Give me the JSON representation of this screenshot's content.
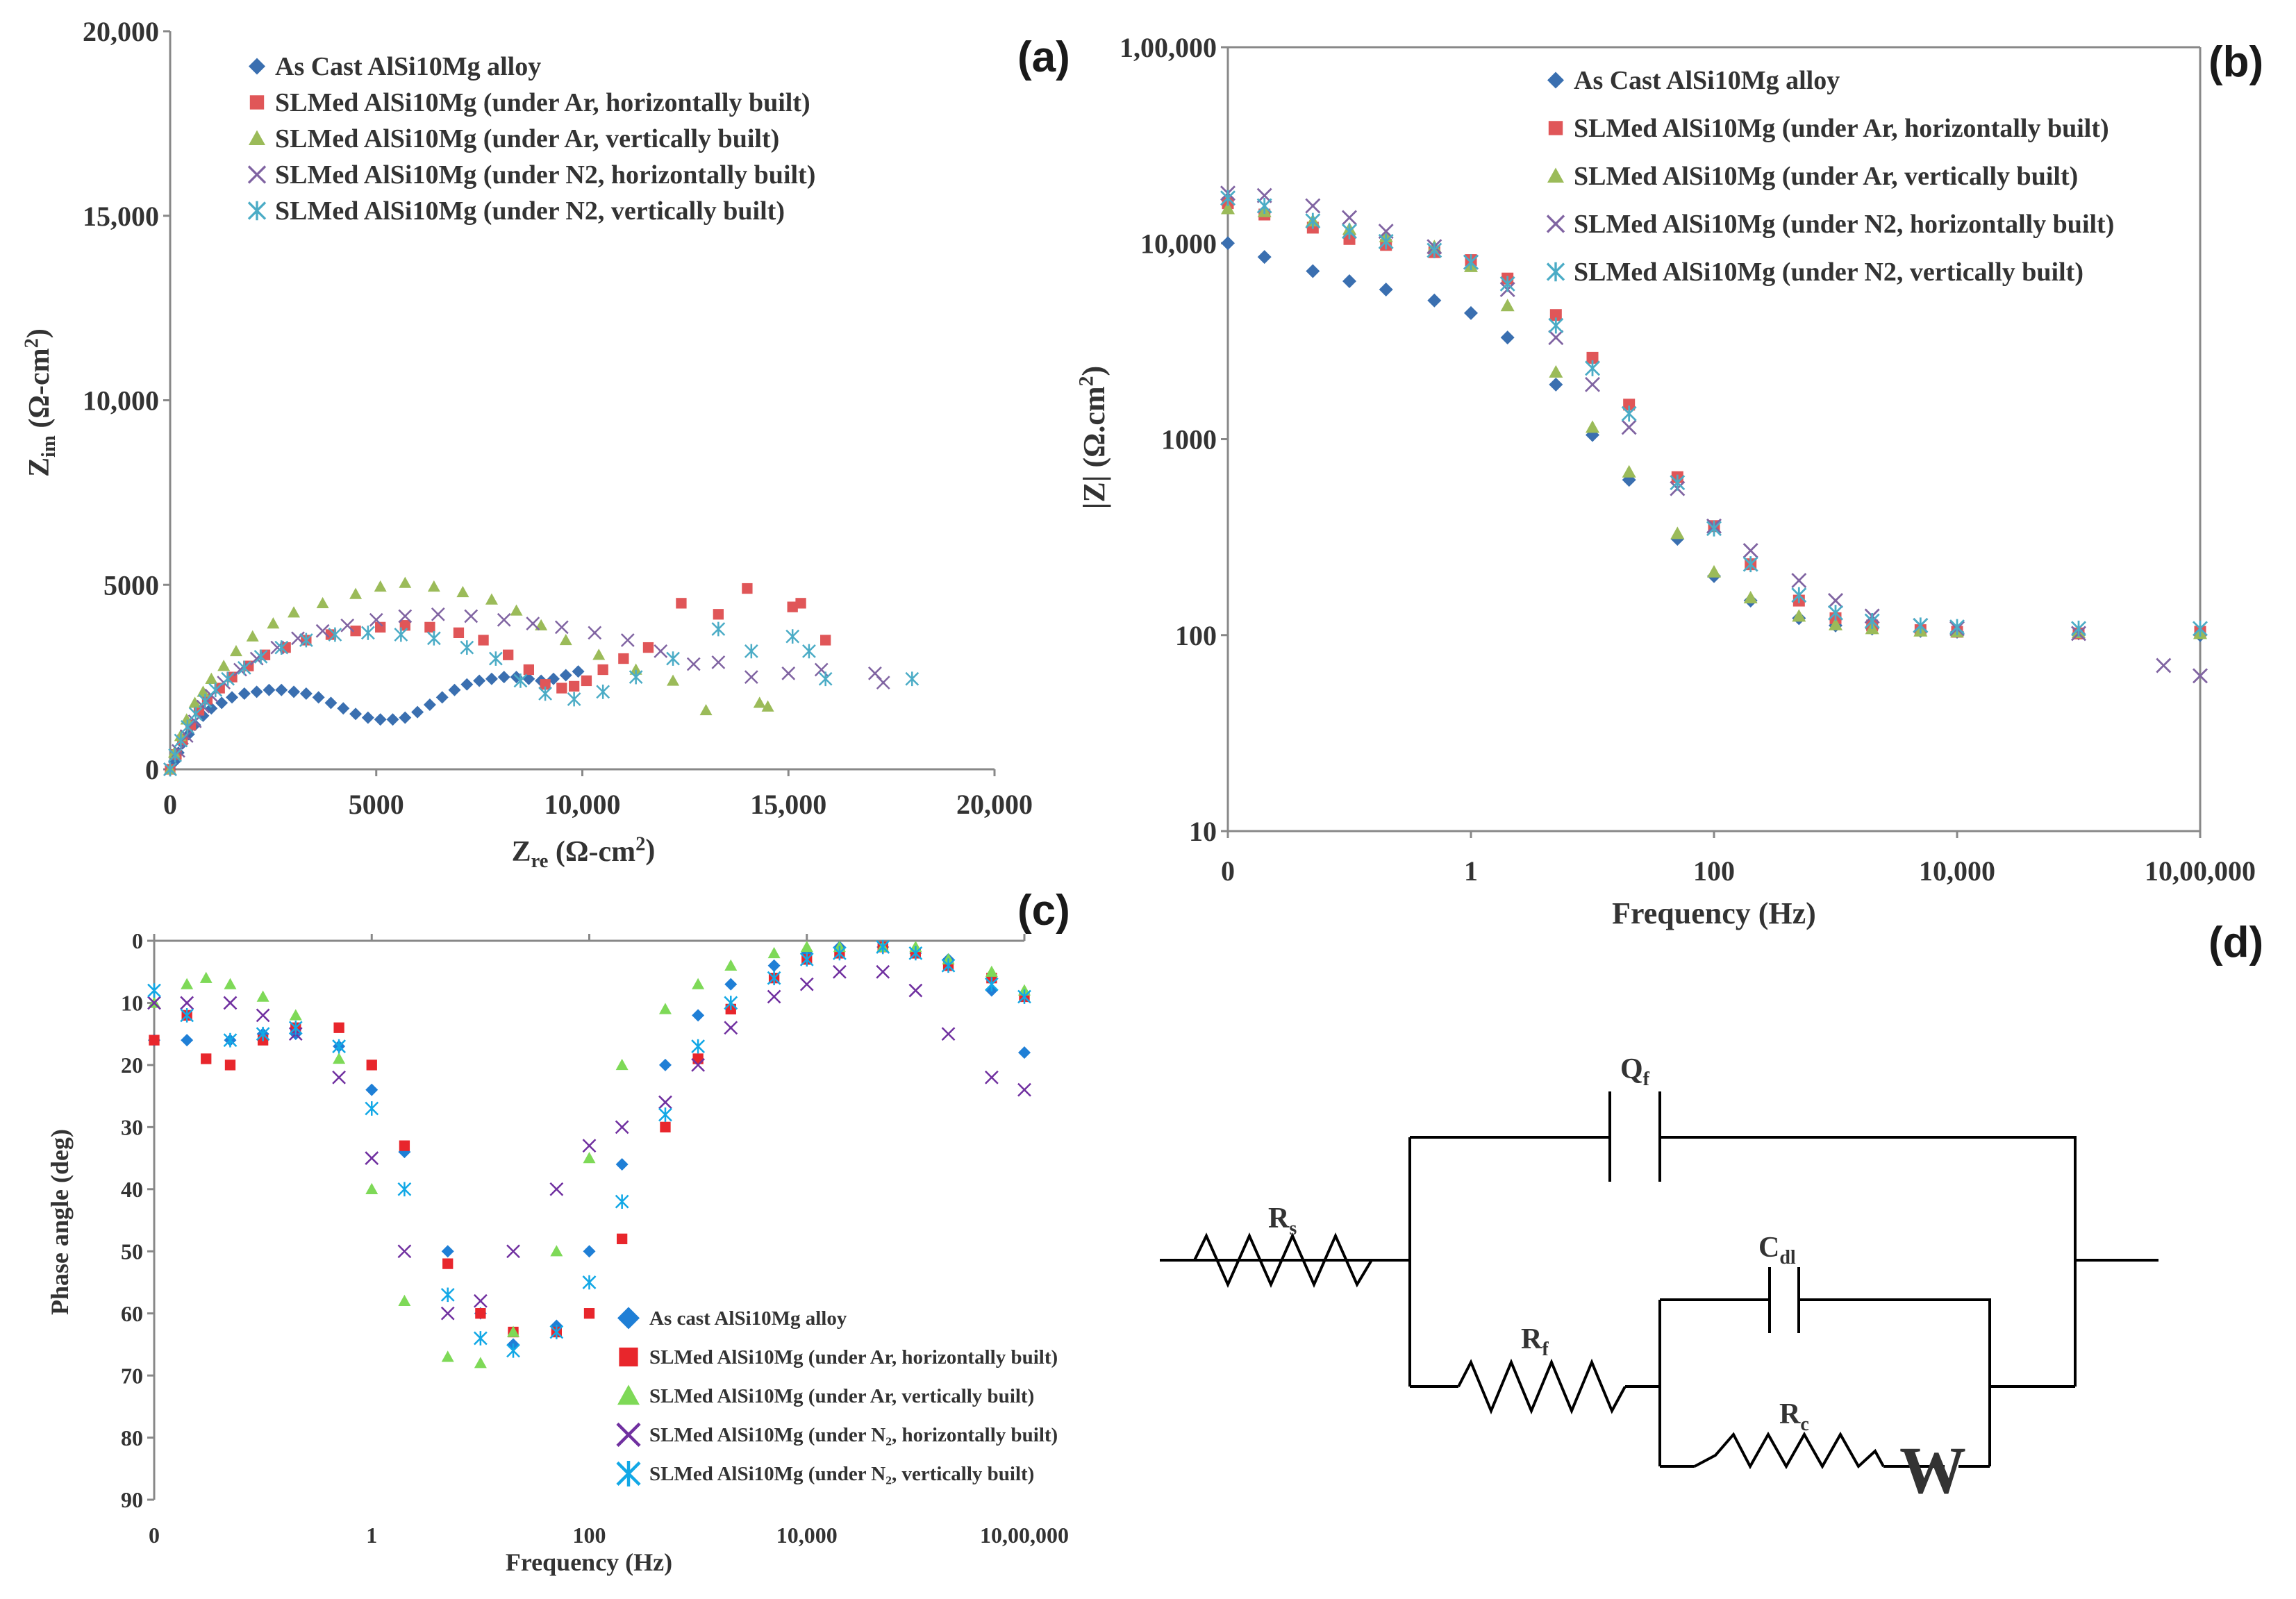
{
  "panel_labels": [
    "(a)",
    "(b)",
    "(c)",
    "(d)"
  ],
  "colors": {
    "as_cast": "#3a6fb0",
    "ar_horizontal": "#e05658",
    "ar_vertical": "#9bbb59",
    "n2_horizontal": "#8064a2",
    "n2_vertical": "#4bacc6",
    "c_as_cast": "#1f7fd6",
    "c_ar_horizontal": "#e8262c",
    "c_ar_vertical": "#7ed957",
    "c_n2_horizontal": "#7030a0",
    "c_n2_vertical": "#12a8e6",
    "axis": "#888888",
    "circuit": "#000000"
  },
  "chart_data": [
    {
      "id": "a",
      "type": "scatter",
      "title": "",
      "xlabel": "Zre (Ω-cm²)",
      "ylabel": "Zim (Ω-cm²)",
      "xlim": [
        0,
        20000
      ],
      "ylim": [
        0,
        20000
      ],
      "xticks": [
        "0",
        "5000",
        "10,000",
        "15,000",
        "20,000"
      ],
      "yticks": [
        "0",
        "5000",
        "10,000",
        "15,000",
        "20,000"
      ],
      "legend_position": "top",
      "series": [
        {
          "name": "As Cast AlSi10Mg alloy",
          "marker": "diamond",
          "color_key": "as_cast",
          "x": [
            0,
            100,
            200,
            300,
            450,
            600,
            800,
            1000,
            1250,
            1500,
            1800,
            2100,
            2400,
            2700,
            3000,
            3300,
            3600,
            3900,
            4200,
            4500,
            4800,
            5100,
            5400,
            5700,
            6000,
            6300,
            6600,
            6900,
            7200,
            7500,
            7800,
            8100,
            8400,
            8700,
            9000,
            9300,
            9600,
            9900
          ],
          "y": [
            0,
            200,
            450,
            700,
            950,
            1200,
            1450,
            1650,
            1800,
            1950,
            2050,
            2100,
            2150,
            2150,
            2100,
            2050,
            1950,
            1800,
            1650,
            1500,
            1400,
            1350,
            1350,
            1400,
            1550,
            1750,
            1950,
            2150,
            2300,
            2400,
            2450,
            2500,
            2500,
            2450,
            2400,
            2450,
            2550,
            2650
          ]
        },
        {
          "name": "SLMed AlSi10Mg (under Ar, horizontally built)",
          "marker": "square",
          "color_key": "ar_horizontal",
          "x": [
            0,
            150,
            300,
            500,
            700,
            900,
            1200,
            1500,
            1900,
            2300,
            2800,
            3300,
            3900,
            4500,
            5100,
            5700,
            6300,
            7000,
            7600,
            8200,
            8700,
            9100,
            9500,
            9800,
            10100,
            10500,
            11000,
            11600,
            12400,
            13300,
            14000,
            15100,
            15300,
            15900
          ],
          "y": [
            0,
            400,
            800,
            1200,
            1600,
            1900,
            2200,
            2500,
            2800,
            3100,
            3300,
            3500,
            3650,
            3750,
            3850,
            3900,
            3850,
            3700,
            3500,
            3100,
            2700,
            2300,
            2200,
            2250,
            2400,
            2700,
            3000,
            3300,
            4500,
            4200,
            4900,
            4400,
            4500,
            3500
          ]
        },
        {
          "name": "SLMed AlSi10Mg (under Ar, vertically built)",
          "marker": "triangle",
          "color_key": "ar_vertical",
          "x": [
            0,
            100,
            250,
            400,
            600,
            800,
            1000,
            1300,
            1600,
            2000,
            2500,
            3000,
            3700,
            4500,
            5100,
            5700,
            6400,
            7100,
            7800,
            8400,
            9000,
            9600,
            10400,
            11300,
            12200,
            13000,
            14300,
            14500
          ],
          "y": [
            0,
            450,
            900,
            1350,
            1800,
            2100,
            2450,
            2800,
            3200,
            3600,
            3950,
            4250,
            4500,
            4750,
            4950,
            5050,
            4950,
            4800,
            4600,
            4300,
            3900,
            3500,
            3100,
            2700,
            2400,
            1600,
            1800,
            1700
          ]
        },
        {
          "name": "SLMed AlSi10Mg (under N2, horizontally built)",
          "marker": "cross",
          "color_key": "n2_horizontal",
          "x": [
            0,
            200,
            400,
            600,
            800,
            1000,
            1300,
            1700,
            2100,
            2600,
            3100,
            3700,
            4300,
            5000,
            5700,
            6500,
            7300,
            8100,
            8800,
            9500,
            10300,
            11100,
            11900,
            12700,
            13300,
            14100,
            15000,
            15800,
            17100,
            17300
          ],
          "y": [
            0,
            500,
            900,
            1300,
            1700,
            2000,
            2350,
            2700,
            3000,
            3300,
            3550,
            3750,
            3900,
            4050,
            4150,
            4200,
            4150,
            4050,
            3950,
            3850,
            3700,
            3500,
            3200,
            2850,
            2900,
            2500,
            2600,
            2700,
            2600,
            2350
          ]
        },
        {
          "name": "SLMed AlSi10Mg (under N2, vertically built)",
          "marker": "star",
          "color_key": "n2_vertical",
          "x": [
            0,
            120,
            260,
            420,
            620,
            850,
            1100,
            1400,
            1800,
            2200,
            2700,
            3300,
            4000,
            4800,
            5600,
            6400,
            7200,
            7900,
            8500,
            9100,
            9800,
            10500,
            11300,
            12200,
            13300,
            14100,
            15100,
            15500,
            15900,
            18000
          ],
          "y": [
            0,
            380,
            780,
            1150,
            1500,
            1850,
            2150,
            2450,
            2750,
            3050,
            3300,
            3500,
            3650,
            3700,
            3650,
            3550,
            3300,
            3000,
            2400,
            2050,
            1900,
            2100,
            2500,
            3000,
            3800,
            3200,
            3600,
            3200,
            2450,
            2450
          ]
        }
      ]
    },
    {
      "id": "b",
      "type": "scatter",
      "title": "",
      "xlabel": "Frequency (Hz)",
      "ylabel": "|Z| (Ω.cm²)",
      "xscale": "log",
      "yscale": "log",
      "xlim": [
        0.01,
        1000000
      ],
      "ylim": [
        10,
        100000
      ],
      "xticks": [
        "0",
        "1",
        "100",
        "10,000",
        "10,00,000"
      ],
      "yticks": [
        "10",
        "100",
        "1000",
        "10,000",
        "1,00,000"
      ],
      "legend_position": "top",
      "series": [
        {
          "name": "As Cast AlSi10Mg alloy",
          "marker": "diamond",
          "color_key": "as_cast",
          "x": [
            0.01,
            0.02,
            0.05,
            0.1,
            0.2,
            0.5,
            1,
            2,
            5,
            10,
            20,
            50,
            100,
            200,
            500,
            1000,
            2000,
            5000,
            10000,
            100000,
            1000000
          ],
          "y": [
            10000,
            8500,
            7200,
            6400,
            5800,
            5100,
            4400,
            3300,
            1900,
            1050,
            620,
            310,
            200,
            150,
            122,
            112,
            108,
            105,
            104,
            102,
            100
          ]
        },
        {
          "name": "SLMed AlSi10Mg (under Ar, horizontally built)",
          "marker": "square",
          "color_key": "ar_horizontal",
          "x": [
            0.01,
            0.02,
            0.05,
            0.1,
            0.2,
            0.5,
            1,
            2,
            5,
            10,
            20,
            50,
            100,
            200,
            500,
            1000,
            2000,
            5000,
            10000,
            100000,
            1000000
          ],
          "y": [
            16000,
            14000,
            12000,
            10500,
            9800,
            9000,
            8200,
            6600,
            4300,
            2600,
            1500,
            640,
            360,
            230,
            150,
            122,
            112,
            106,
            104,
            102,
            104
          ]
        },
        {
          "name": "SLMed AlSi10Mg (under Ar, vertically built)",
          "marker": "triangle",
          "color_key": "ar_vertical",
          "x": [
            0.01,
            0.02,
            0.05,
            0.1,
            0.2,
            0.5,
            1,
            2,
            5,
            10,
            20,
            50,
            100,
            200,
            500,
            1000,
            2000,
            5000,
            10000,
            100000,
            1000000
          ],
          "y": [
            15000,
            14500,
            13000,
            11800,
            10800,
            9600,
            7600,
            4800,
            2200,
            1150,
            680,
            330,
            210,
            155,
            125,
            113,
            108,
            105,
            104,
            103,
            102
          ]
        },
        {
          "name": "SLMed AlSi10Mg (under N2, horizontally built)",
          "marker": "cross",
          "color_key": "n2_horizontal",
          "x": [
            0.01,
            0.02,
            0.05,
            0.1,
            0.2,
            0.5,
            1,
            2,
            5,
            10,
            20,
            50,
            100,
            200,
            500,
            1000,
            2000,
            5000,
            10000,
            100000,
            500000,
            1000000
          ],
          "y": [
            18000,
            17500,
            15500,
            13500,
            11500,
            9600,
            8000,
            5800,
            3300,
            1900,
            1150,
            560,
            360,
            270,
            190,
            150,
            125,
            112,
            108,
            102,
            70,
            62
          ]
        },
        {
          "name": "SLMed AlSi10Mg (under N2, vertically built)",
          "marker": "star",
          "color_key": "n2_vertical",
          "x": [
            0.01,
            0.02,
            0.05,
            0.1,
            0.2,
            0.5,
            1,
            2,
            5,
            10,
            20,
            50,
            100,
            200,
            500,
            1000,
            2000,
            5000,
            10000,
            100000,
            1000000
          ],
          "y": [
            17000,
            15500,
            13000,
            11500,
            10200,
            9200,
            8000,
            6200,
            3800,
            2300,
            1350,
            600,
            350,
            230,
            160,
            130,
            118,
            112,
            110,
            108,
            108
          ]
        }
      ]
    },
    {
      "id": "c",
      "type": "scatter",
      "title": "",
      "xlabel": "Frequency (Hz)",
      "ylabel": "Phase angle (deg)",
      "xscale": "log",
      "xlim": [
        0.01,
        1000000
      ],
      "ylim": [
        0,
        90
      ],
      "y_inverted": true,
      "xticks": [
        "0",
        "1",
        "100",
        "10,000",
        "10,00,000"
      ],
      "yticks": [
        "0",
        "10",
        "20",
        "30",
        "40",
        "50",
        "60",
        "70",
        "80",
        "90"
      ],
      "legend_position": "bottom-right",
      "series": [
        {
          "name": "As cast AlSi10Mg alloy",
          "marker": "diamond",
          "color_key": "c_as_cast",
          "x": [
            0.01,
            0.02,
            0.05,
            0.1,
            0.2,
            0.5,
            1,
            2,
            5,
            10,
            20,
            50,
            100,
            200,
            500,
            1000,
            2000,
            5000,
            10000,
            20000,
            50000,
            100000,
            200000,
            500000,
            1000000
          ],
          "y": [
            16,
            16,
            16,
            15,
            15,
            17,
            24,
            34,
            50,
            60,
            65,
            62,
            50,
            36,
            20,
            12,
            7,
            4,
            2,
            1,
            1,
            2,
            3,
            8,
            18
          ]
        },
        {
          "name": "SLMed AlSi10Mg (under Ar, horizontally built)",
          "marker": "square",
          "color_key": "c_ar_horizontal",
          "x": [
            0.01,
            0.02,
            0.03,
            0.05,
            0.1,
            0.2,
            0.5,
            1,
            2,
            5,
            10,
            20,
            50,
            100,
            200,
            500,
            1000,
            2000,
            5000,
            10000,
            20000,
            50000,
            100000,
            200000,
            500000,
            1000000
          ],
          "y": [
            16,
            12,
            19,
            20,
            16,
            14,
            14,
            20,
            33,
            52,
            60,
            63,
            63,
            60,
            48,
            30,
            19,
            11,
            6,
            3,
            2,
            1,
            2,
            4,
            6,
            9
          ]
        },
        {
          "name": "SLMed AlSi10Mg (under Ar, vertically built)",
          "marker": "triangle",
          "color_key": "c_ar_vertical",
          "x": [
            0.01,
            0.02,
            0.03,
            0.05,
            0.1,
            0.2,
            0.5,
            1,
            2,
            5,
            10,
            20,
            50,
            100,
            200,
            500,
            1000,
            2000,
            5000,
            10000,
            20000,
            50000,
            100000,
            200000,
            500000,
            1000000
          ],
          "y": [
            10,
            7,
            6,
            7,
            9,
            12,
            19,
            40,
            58,
            67,
            68,
            63,
            50,
            35,
            20,
            11,
            7,
            4,
            2,
            1,
            1,
            1,
            1,
            3,
            5,
            8
          ]
        },
        {
          "name": "SLMed AlSi10Mg (under N₂, horizontally built)",
          "marker": "cross",
          "color_key": "c_n2_horizontal",
          "x": [
            0.01,
            0.02,
            0.05,
            0.1,
            0.2,
            0.5,
            1,
            2,
            5,
            10,
            20,
            50,
            100,
            200,
            500,
            1000,
            2000,
            5000,
            10000,
            20000,
            50000,
            100000,
            200000,
            500000,
            1000000
          ],
          "y": [
            10,
            10,
            10,
            12,
            15,
            22,
            35,
            50,
            60,
            58,
            50,
            40,
            33,
            30,
            26,
            20,
            14,
            9,
            7,
            5,
            5,
            8,
            15,
            22,
            24
          ]
        },
        {
          "name": "SLMed AlSi10Mg (under N₂, vertically built)",
          "marker": "star",
          "color_key": "c_n2_vertical",
          "x": [
            0.01,
            0.02,
            0.05,
            0.1,
            0.2,
            0.5,
            1,
            2,
            5,
            10,
            20,
            50,
            100,
            200,
            500,
            1000,
            2000,
            5000,
            10000,
            20000,
            50000,
            100000,
            200000,
            500000,
            1000000
          ],
          "y": [
            8,
            12,
            16,
            15,
            14,
            17,
            27,
            40,
            57,
            64,
            66,
            63,
            55,
            42,
            28,
            17,
            10,
            6,
            3,
            2,
            1,
            2,
            4,
            7,
            9
          ]
        }
      ]
    }
  ],
  "circuit": {
    "components": {
      "rs": {
        "main": "R",
        "sub": "s"
      },
      "qf": {
        "main": "Q",
        "sub": "f"
      },
      "rf": {
        "main": "R",
        "sub": "f"
      },
      "cdl": {
        "main": "C",
        "sub": "dl"
      },
      "rc": {
        "main": "R",
        "sub": "c"
      },
      "w": {
        "main": "W",
        "sub": ""
      }
    }
  }
}
